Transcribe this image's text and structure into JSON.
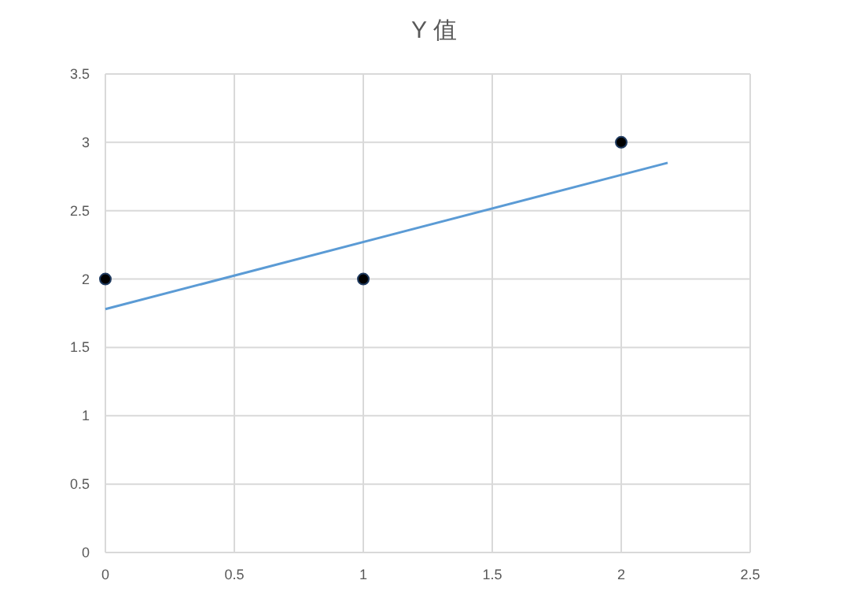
{
  "chart_data": {
    "type": "scatter",
    "title": "Y 值",
    "series": [
      {
        "color": "#000000",
        "x": [
          0,
          1,
          2
        ],
        "values": [
          2,
          2,
          3
        ],
        "marker": "circle"
      },
      {
        "type": "line",
        "color": "#5b9bd5",
        "x": [
          0,
          2.18
        ],
        "values": [
          1.78,
          2.85
        ],
        "marker": "none"
      }
    ],
    "xlim": [
      0,
      2.5
    ],
    "xticks": [
      0,
      0.5,
      1,
      1.5,
      2,
      2.5
    ],
    "ylim": [
      0,
      3.5
    ],
    "yticks": [
      0,
      0.5,
      1,
      1.5,
      2,
      2.5,
      3,
      3.5
    ],
    "grid": true
  }
}
